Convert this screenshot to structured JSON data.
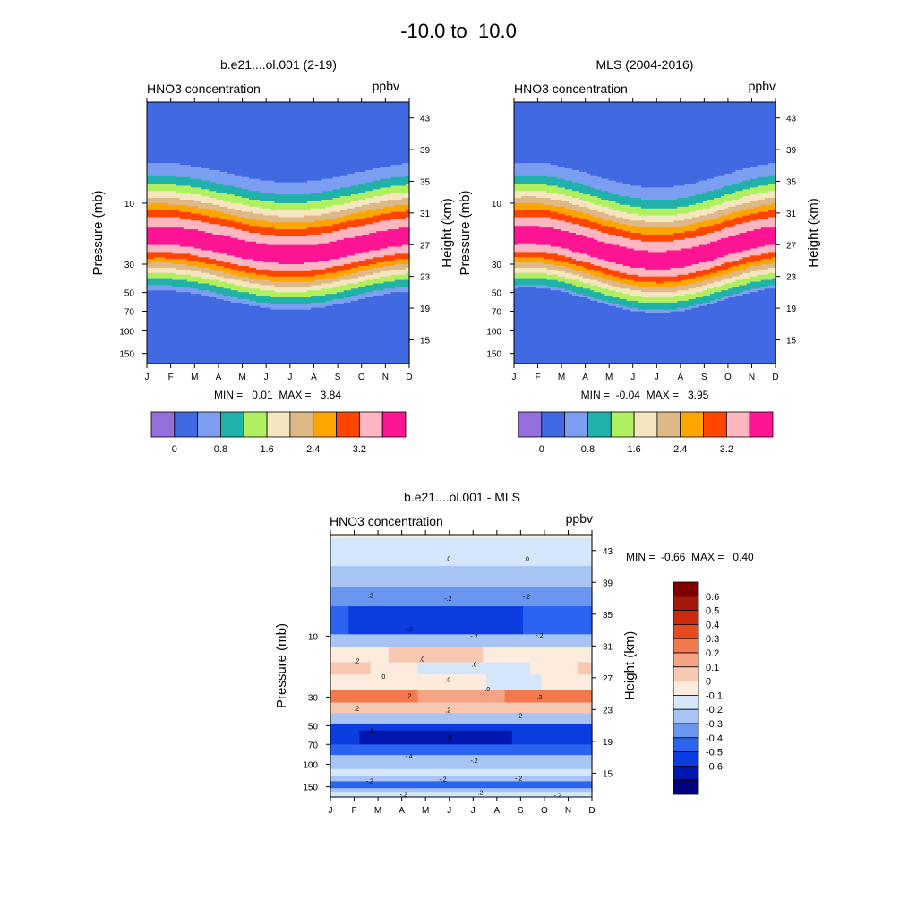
{
  "chart_data": {
    "suptitle": "-10.0 to  10.0",
    "type": "heatmap",
    "panels": [
      {
        "title": "b.e21....ol.001 (2-19)",
        "left_label": "HNO3 concentration",
        "right_label": "ppbv",
        "ylabel_left": "Pressure (mb)",
        "ylabel_right": "Height (km)",
        "stats": "MIN =   0.01  MAX =   3.84",
        "top_band": false,
        "wave_amp_km": 1.2,
        "peak_km": 26.8,
        "levels": [
          0.4,
          0.8,
          1.2,
          1.6,
          2.0,
          2.4,
          2.8,
          3.2,
          3.6
        ]
      },
      {
        "title": "MLS (2004-2016)",
        "left_label": "HNO3 concentration",
        "right_label": "ppbv",
        "ylabel_left": "Pressure (mb)",
        "ylabel_right": "Height (km)",
        "stats": "MIN =  -0.04  MAX =   3.95",
        "top_band": true,
        "wave_amp_km": 1.6,
        "peak_km": 26.5,
        "levels": [
          0.4,
          0.8,
          1.2,
          1.6,
          2.0,
          2.4,
          2.8,
          3.2,
          3.6
        ]
      }
    ],
    "diff_panel": {
      "title": "b.e21....ol.001 - MLS",
      "left_label": "HNO3 concentration",
      "right_label": "ppbv",
      "ylabel_left": "Pressure (mb)",
      "ylabel_right": "Height (km)",
      "stats": "MIN =  -0.66  MAX =   0.40",
      "contour_labels": [
        ".0",
        "-.2",
        ".2",
        "-.4",
        "-.6"
      ]
    },
    "months": [
      "J",
      "F",
      "M",
      "A",
      "M",
      "J",
      "J",
      "A",
      "S",
      "O",
      "N",
      "D"
    ],
    "pressure_ticks": [
      "10",
      "30",
      "50",
      "70",
      "100",
      "150"
    ],
    "height_ticks": [
      "43",
      "39",
      "35",
      "31",
      "27",
      "23",
      "19",
      "15"
    ],
    "colorbar_main": {
      "colors": [
        "#9370DB",
        "#4169E1",
        "#7B9EF0",
        "#20B2AA",
        "#B0F060",
        "#F5E6C0",
        "#DEB887",
        "#FFA500",
        "#FF4500",
        "#FFB6C1",
        "#FF1493"
      ],
      "tick_labels": [
        "0",
        "0.8",
        "1.6",
        "2.4",
        "3.2"
      ]
    },
    "colorbar_diff": {
      "colors": [
        "#000080",
        "#0018B0",
        "#0A3CE0",
        "#2A64F0",
        "#6A96F0",
        "#A8C4F4",
        "#D4E6FA",
        "#FDEBDD",
        "#F8C8B0",
        "#F4A482",
        "#F2794E",
        "#E84A1E",
        "#CF2A0E",
        "#A6180A",
        "#800000"
      ],
      "tick_labels": [
        "0.6",
        "0.5",
        "0.4",
        "0.3",
        "0.2",
        "0.1",
        "0",
        "-0.1",
        "-0.2",
        "-0.3",
        "-0.4",
        "-0.5",
        "-0.6"
      ]
    }
  }
}
